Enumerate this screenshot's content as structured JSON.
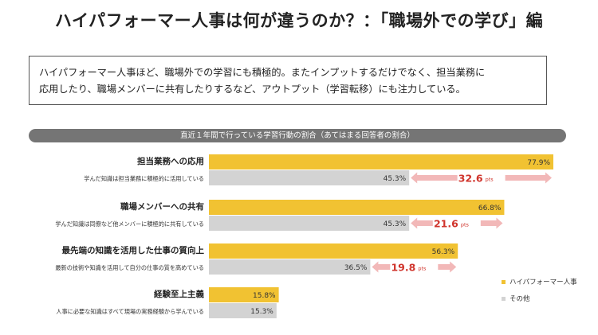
{
  "page": {
    "title": "ハイパフォーマー人事は何が違うのか？：「職場外での学び」編",
    "description": [
      "ハイパフォーマー人事ほど、職場外での学習にも積極的。またインプットするだけでなく、担当業務に",
      "応用したり、職場メンバーに共有したりするなど、アウトプット（学習転移）にも注力している。"
    ],
    "subtitle": "直近１年間で行っている学習行動の割合（あてはまる回答者の割合）"
  },
  "colors": {
    "high_performer": "#f1c232",
    "other": "#d3d3d3",
    "arrow": "#f2b8b8",
    "diff_text": "#d0342c"
  },
  "chart_data": {
    "type": "bar",
    "orientation": "horizontal",
    "title": "直近１年間で行っている学習行動の割合（あてはまる回答者の割合）",
    "categories": [
      "担当業務への応用",
      "職場メンバーへの共有",
      "最先端の知識を活用した仕事の質向上",
      "経験至上主義"
    ],
    "category_descriptions": [
      "学んだ知識は担当業務に積極的に活用している",
      "学んだ知識は同僚など他メンバーに積極的に共有している",
      "最新の技術や知識を活用して自分の仕事の質を高めている",
      "人事に必要な知識はすべて現場の実務経験から学んでいる"
    ],
    "series": [
      {
        "name": "ハイパフォーマー人事",
        "values": [
          77.9,
          66.8,
          56.3,
          15.8
        ],
        "labels": [
          "77.9%",
          "66.8%",
          "56.3%",
          "15.8%"
        ]
      },
      {
        "name": "その他",
        "values": [
          45.3,
          45.3,
          36.5,
          15.3
        ],
        "labels": [
          "45.3%",
          "45.3%",
          "36.5%",
          "15.3%"
        ]
      }
    ],
    "differences": [
      {
        "value": "32.6",
        "unit": "pts"
      },
      {
        "value": "21.6",
        "unit": "pts"
      },
      {
        "value": "19.8",
        "unit": "pts"
      }
    ],
    "xlim": [
      0,
      100
    ],
    "legend_position": "bottom-right"
  }
}
